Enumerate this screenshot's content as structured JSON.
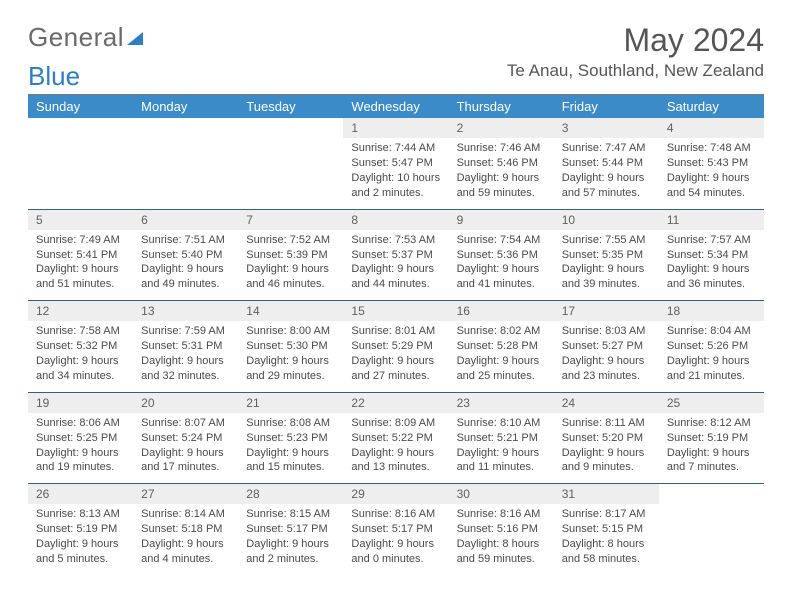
{
  "header": {
    "logo_text_1": "General",
    "logo_text_2": "Blue",
    "month_title": "May 2024",
    "location": "Te Anau, Southland, New Zealand"
  },
  "colors": {
    "header_bg": "#3b8bc8",
    "header_text": "#ffffff",
    "daynum_bg": "#eeeeee",
    "border": "#3a5f7a",
    "logo_blue": "#2f7ec1"
  },
  "weekdays": [
    "Sunday",
    "Monday",
    "Tuesday",
    "Wednesday",
    "Thursday",
    "Friday",
    "Saturday"
  ],
  "weeks": [
    [
      null,
      null,
      null,
      {
        "n": "1",
        "sr": "Sunrise: 7:44 AM",
        "ss": "Sunset: 5:47 PM",
        "d1": "Daylight: 10 hours",
        "d2": "and 2 minutes."
      },
      {
        "n": "2",
        "sr": "Sunrise: 7:46 AM",
        "ss": "Sunset: 5:46 PM",
        "d1": "Daylight: 9 hours",
        "d2": "and 59 minutes."
      },
      {
        "n": "3",
        "sr": "Sunrise: 7:47 AM",
        "ss": "Sunset: 5:44 PM",
        "d1": "Daylight: 9 hours",
        "d2": "and 57 minutes."
      },
      {
        "n": "4",
        "sr": "Sunrise: 7:48 AM",
        "ss": "Sunset: 5:43 PM",
        "d1": "Daylight: 9 hours",
        "d2": "and 54 minutes."
      }
    ],
    [
      {
        "n": "5",
        "sr": "Sunrise: 7:49 AM",
        "ss": "Sunset: 5:41 PM",
        "d1": "Daylight: 9 hours",
        "d2": "and 51 minutes."
      },
      {
        "n": "6",
        "sr": "Sunrise: 7:51 AM",
        "ss": "Sunset: 5:40 PM",
        "d1": "Daylight: 9 hours",
        "d2": "and 49 minutes."
      },
      {
        "n": "7",
        "sr": "Sunrise: 7:52 AM",
        "ss": "Sunset: 5:39 PM",
        "d1": "Daylight: 9 hours",
        "d2": "and 46 minutes."
      },
      {
        "n": "8",
        "sr": "Sunrise: 7:53 AM",
        "ss": "Sunset: 5:37 PM",
        "d1": "Daylight: 9 hours",
        "d2": "and 44 minutes."
      },
      {
        "n": "9",
        "sr": "Sunrise: 7:54 AM",
        "ss": "Sunset: 5:36 PM",
        "d1": "Daylight: 9 hours",
        "d2": "and 41 minutes."
      },
      {
        "n": "10",
        "sr": "Sunrise: 7:55 AM",
        "ss": "Sunset: 5:35 PM",
        "d1": "Daylight: 9 hours",
        "d2": "and 39 minutes."
      },
      {
        "n": "11",
        "sr": "Sunrise: 7:57 AM",
        "ss": "Sunset: 5:34 PM",
        "d1": "Daylight: 9 hours",
        "d2": "and 36 minutes."
      }
    ],
    [
      {
        "n": "12",
        "sr": "Sunrise: 7:58 AM",
        "ss": "Sunset: 5:32 PM",
        "d1": "Daylight: 9 hours",
        "d2": "and 34 minutes."
      },
      {
        "n": "13",
        "sr": "Sunrise: 7:59 AM",
        "ss": "Sunset: 5:31 PM",
        "d1": "Daylight: 9 hours",
        "d2": "and 32 minutes."
      },
      {
        "n": "14",
        "sr": "Sunrise: 8:00 AM",
        "ss": "Sunset: 5:30 PM",
        "d1": "Daylight: 9 hours",
        "d2": "and 29 minutes."
      },
      {
        "n": "15",
        "sr": "Sunrise: 8:01 AM",
        "ss": "Sunset: 5:29 PM",
        "d1": "Daylight: 9 hours",
        "d2": "and 27 minutes."
      },
      {
        "n": "16",
        "sr": "Sunrise: 8:02 AM",
        "ss": "Sunset: 5:28 PM",
        "d1": "Daylight: 9 hours",
        "d2": "and 25 minutes."
      },
      {
        "n": "17",
        "sr": "Sunrise: 8:03 AM",
        "ss": "Sunset: 5:27 PM",
        "d1": "Daylight: 9 hours",
        "d2": "and 23 minutes."
      },
      {
        "n": "18",
        "sr": "Sunrise: 8:04 AM",
        "ss": "Sunset: 5:26 PM",
        "d1": "Daylight: 9 hours",
        "d2": "and 21 minutes."
      }
    ],
    [
      {
        "n": "19",
        "sr": "Sunrise: 8:06 AM",
        "ss": "Sunset: 5:25 PM",
        "d1": "Daylight: 9 hours",
        "d2": "and 19 minutes."
      },
      {
        "n": "20",
        "sr": "Sunrise: 8:07 AM",
        "ss": "Sunset: 5:24 PM",
        "d1": "Daylight: 9 hours",
        "d2": "and 17 minutes."
      },
      {
        "n": "21",
        "sr": "Sunrise: 8:08 AM",
        "ss": "Sunset: 5:23 PM",
        "d1": "Daylight: 9 hours",
        "d2": "and 15 minutes."
      },
      {
        "n": "22",
        "sr": "Sunrise: 8:09 AM",
        "ss": "Sunset: 5:22 PM",
        "d1": "Daylight: 9 hours",
        "d2": "and 13 minutes."
      },
      {
        "n": "23",
        "sr": "Sunrise: 8:10 AM",
        "ss": "Sunset: 5:21 PM",
        "d1": "Daylight: 9 hours",
        "d2": "and 11 minutes."
      },
      {
        "n": "24",
        "sr": "Sunrise: 8:11 AM",
        "ss": "Sunset: 5:20 PM",
        "d1": "Daylight: 9 hours",
        "d2": "and 9 minutes."
      },
      {
        "n": "25",
        "sr": "Sunrise: 8:12 AM",
        "ss": "Sunset: 5:19 PM",
        "d1": "Daylight: 9 hours",
        "d2": "and 7 minutes."
      }
    ],
    [
      {
        "n": "26",
        "sr": "Sunrise: 8:13 AM",
        "ss": "Sunset: 5:19 PM",
        "d1": "Daylight: 9 hours",
        "d2": "and 5 minutes."
      },
      {
        "n": "27",
        "sr": "Sunrise: 8:14 AM",
        "ss": "Sunset: 5:18 PM",
        "d1": "Daylight: 9 hours",
        "d2": "and 4 minutes."
      },
      {
        "n": "28",
        "sr": "Sunrise: 8:15 AM",
        "ss": "Sunset: 5:17 PM",
        "d1": "Daylight: 9 hours",
        "d2": "and 2 minutes."
      },
      {
        "n": "29",
        "sr": "Sunrise: 8:16 AM",
        "ss": "Sunset: 5:17 PM",
        "d1": "Daylight: 9 hours",
        "d2": "and 0 minutes."
      },
      {
        "n": "30",
        "sr": "Sunrise: 8:16 AM",
        "ss": "Sunset: 5:16 PM",
        "d1": "Daylight: 8 hours",
        "d2": "and 59 minutes."
      },
      {
        "n": "31",
        "sr": "Sunrise: 8:17 AM",
        "ss": "Sunset: 5:15 PM",
        "d1": "Daylight: 8 hours",
        "d2": "and 58 minutes."
      },
      null
    ]
  ]
}
